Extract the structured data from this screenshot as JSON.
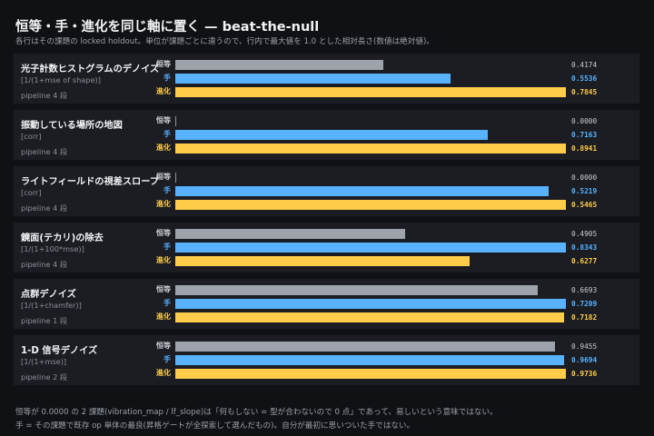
{
  "title": "恒等・手・進化を同じ軸に置く — beat-the-null",
  "subtitle": "各行はその課題の locked holdout。単位が課題ごとに違うので、行内で最大値を 1.0 とした相対長さ(数値は絶対値)。",
  "footnote": [
    "恒等が 0.0000 の 2 課題(vibration_map / lf_slope)は「何もしない = 型が合わないので 0 点」であって、易しいという意味ではない。",
    "手 = その課題で既存 op 単体の最良(昇格ゲートが全探索して選んだもの)。自分が最初に思いついた手ではない。"
  ],
  "colors": {
    "identity": "#9ea3ab",
    "hand": "#58b2ff",
    "evolved": "#ffcc4a",
    "card_bg": "#1b1d23",
    "page_bg": "#0f1115"
  },
  "chart_data": {
    "type": "bar",
    "orientation": "horizontal",
    "normalization": "per-row max = 1.0",
    "series_labels": [
      "恒等",
      "手",
      "進化"
    ],
    "tasks": [
      {
        "name": "光子計数ヒストグラムのデノイズ",
        "metric": "[1/(1+mse of shape)]",
        "pipeline": "pipeline 4 段",
        "values": [
          0.4174,
          0.5536,
          0.7845
        ],
        "labels": [
          "0.4174",
          "0.5536",
          "0.7845"
        ]
      },
      {
        "name": "振動している場所の地図",
        "metric": "[corr]",
        "pipeline": "pipeline 4 段",
        "values": [
          0.0,
          0.7163,
          0.8941
        ],
        "labels": [
          "0.0000",
          "0.7163",
          "0.8941"
        ]
      },
      {
        "name": "ライトフィールドの視差スロープ",
        "metric": "[corr]",
        "pipeline": "pipeline 4 段",
        "values": [
          0.0,
          0.5219,
          0.5465
        ],
        "labels": [
          "0.0000",
          "0.5219",
          "0.5465"
        ]
      },
      {
        "name": "鏡面(テカリ)の除去",
        "metric": "[1/(1+100*mse)]",
        "pipeline": "pipeline 4 段",
        "values": [
          0.4905,
          0.8343,
          0.6277
        ],
        "labels": [
          "0.4905",
          "0.8343",
          "0.6277"
        ]
      },
      {
        "name": "点群デノイズ",
        "metric": "[1/(1+chamfer)]",
        "pipeline": "pipeline 1 段",
        "values": [
          0.6693,
          0.7209,
          0.7182
        ],
        "labels": [
          "0.6693",
          "0.7209",
          "0.7182"
        ]
      },
      {
        "name": "1-D 信号デノイズ",
        "metric": "[1/(1+mse)]",
        "pipeline": "pipeline 2 段",
        "values": [
          0.9455,
          0.9694,
          0.9736
        ],
        "labels": [
          "0.9455",
          "0.9694",
          "0.9736"
        ]
      }
    ]
  }
}
